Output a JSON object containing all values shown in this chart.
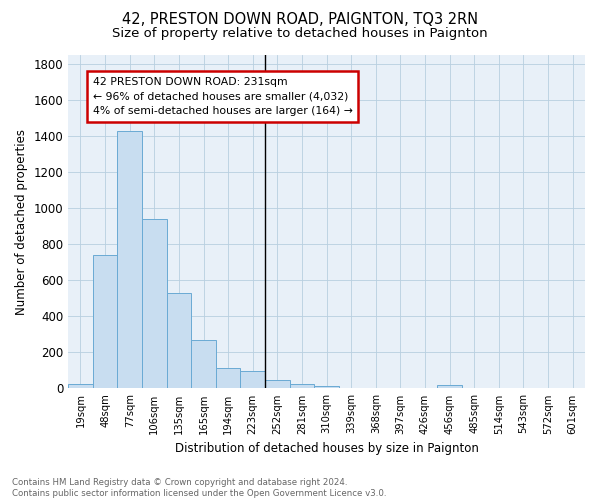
{
  "title": "42, PRESTON DOWN ROAD, PAIGNTON, TQ3 2RN",
  "subtitle": "Size of property relative to detached houses in Paignton",
  "xlabel": "Distribution of detached houses by size in Paignton",
  "ylabel": "Number of detached properties",
  "bar_color": "#c8ddf0",
  "bar_edge_color": "#6aaad4",
  "background_color": "#ffffff",
  "plot_bg_color": "#e8f0f8",
  "grid_color": "#b8cfe0",
  "annotation_text": "42 PRESTON DOWN ROAD: 231sqm\n← 96% of detached houses are smaller (4,032)\n4% of semi-detached houses are larger (164) →",
  "property_line_bar_index": 7.5,
  "categories": [
    "19sqm",
    "48sqm",
    "77sqm",
    "106sqm",
    "135sqm",
    "165sqm",
    "194sqm",
    "223sqm",
    "252sqm",
    "281sqm",
    "310sqm",
    "339sqm",
    "368sqm",
    "397sqm",
    "426sqm",
    "456sqm",
    "485sqm",
    "514sqm",
    "543sqm",
    "572sqm",
    "601sqm"
  ],
  "values": [
    25,
    740,
    1430,
    940,
    530,
    270,
    115,
    95,
    45,
    25,
    15,
    5,
    5,
    5,
    5,
    18,
    5,
    0,
    0,
    0,
    0
  ],
  "ylim": [
    0,
    1850
  ],
  "yticks": [
    0,
    200,
    400,
    600,
    800,
    1000,
    1200,
    1400,
    1600,
    1800
  ],
  "footnote": "Contains HM Land Registry data © Crown copyright and database right 2024.\nContains public sector information licensed under the Open Government Licence v3.0.",
  "title_fontsize": 10.5,
  "subtitle_fontsize": 9.5,
  "annotation_box_color": "#ffffff",
  "annotation_box_edge": "#cc0000",
  "property_line_color": "#000000",
  "footnote_color": "#666666"
}
